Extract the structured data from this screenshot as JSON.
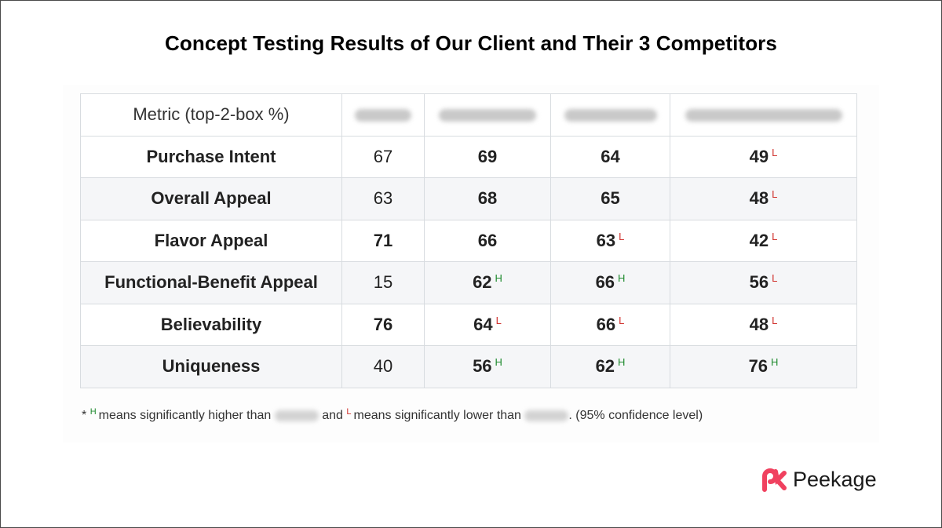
{
  "title": "Concept Testing Results of Our Client and Their 3 Competitors",
  "chart_data": {
    "type": "table",
    "columns": [
      "Metric (top-2-box %)",
      "",
      "",
      "",
      ""
    ],
    "rows": [
      {
        "metric": "Purchase Intent",
        "cells": [
          {
            "value": "67",
            "bold": false,
            "sig": ""
          },
          {
            "value": "69",
            "bold": true,
            "sig": ""
          },
          {
            "value": "64",
            "bold": true,
            "sig": ""
          },
          {
            "value": "49",
            "bold": true,
            "sig": "L"
          }
        ]
      },
      {
        "metric": "Overall Appeal",
        "cells": [
          {
            "value": "63",
            "bold": false,
            "sig": ""
          },
          {
            "value": "68",
            "bold": true,
            "sig": ""
          },
          {
            "value": "65",
            "bold": true,
            "sig": ""
          },
          {
            "value": "48",
            "bold": true,
            "sig": "L"
          }
        ]
      },
      {
        "metric": "Flavor Appeal",
        "cells": [
          {
            "value": "71",
            "bold": true,
            "sig": ""
          },
          {
            "value": "66",
            "bold": true,
            "sig": ""
          },
          {
            "value": "63",
            "bold": true,
            "sig": "L"
          },
          {
            "value": "42",
            "bold": true,
            "sig": "L"
          }
        ]
      },
      {
        "metric": "Functional-Benefit Appeal",
        "cells": [
          {
            "value": "15",
            "bold": false,
            "sig": ""
          },
          {
            "value": "62",
            "bold": true,
            "sig": "H"
          },
          {
            "value": "66",
            "bold": true,
            "sig": "H"
          },
          {
            "value": "56",
            "bold": true,
            "sig": "L"
          }
        ]
      },
      {
        "metric": "Believability",
        "cells": [
          {
            "value": "76",
            "bold": true,
            "sig": ""
          },
          {
            "value": "64",
            "bold": true,
            "sig": "L"
          },
          {
            "value": "66",
            "bold": true,
            "sig": "L"
          },
          {
            "value": "48",
            "bold": true,
            "sig": "L"
          }
        ]
      },
      {
        "metric": "Uniqueness",
        "cells": [
          {
            "value": "40",
            "bold": false,
            "sig": ""
          },
          {
            "value": "56",
            "bold": true,
            "sig": "H"
          },
          {
            "value": "62",
            "bold": true,
            "sig": "H"
          },
          {
            "value": "76",
            "bold": true,
            "sig": "H"
          }
        ]
      }
    ],
    "colors": {
      "H": "#1e8a2e",
      "L": "#d0312d"
    }
  },
  "footnote": {
    "star": "*",
    "h_mark": "H",
    "part1": "means significantly higher than",
    "and": "and",
    "l_mark": "L",
    "part2": "means significantly lower than",
    "part3": ". (95% confidence level)"
  },
  "logo": {
    "name": "Peekage",
    "icon": "peekage-logo-icon",
    "color": "#f0415f"
  }
}
